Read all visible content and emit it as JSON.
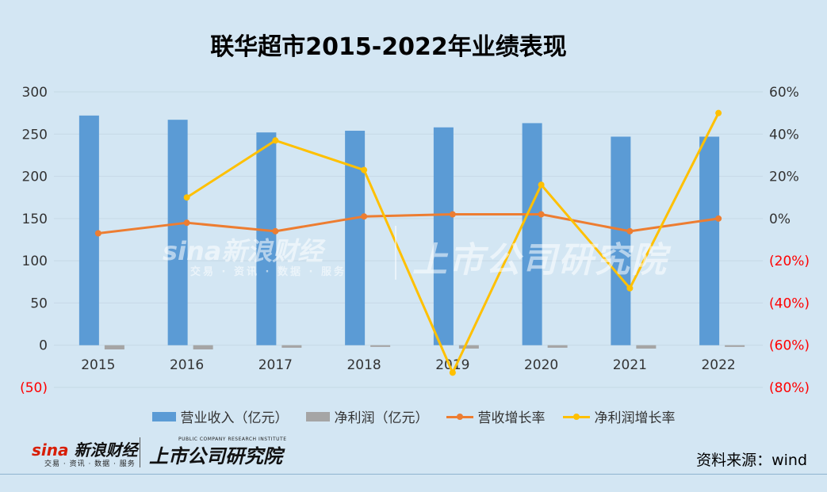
{
  "title": "联华超市2015-2022年业绩表现",
  "chart_data": {
    "type": "bar+line",
    "categories": [
      "2015",
      "2016",
      "2017",
      "2018",
      "2019",
      "2020",
      "2021",
      "2022"
    ],
    "series": [
      {
        "name": "营业收入（亿元）",
        "type": "bar",
        "axis": "left",
        "color": "#5b9bd5",
        "values": [
          272,
          267,
          252,
          254,
          258,
          263,
          247,
          247
        ]
      },
      {
        "name": "净利润（亿元）",
        "type": "bar",
        "axis": "left",
        "color": "#a5a5a5",
        "values": [
          -5,
          -5,
          -3,
          -2,
          -4,
          -3,
          -4,
          -2
        ]
      },
      {
        "name": "营收增长率",
        "type": "line",
        "axis": "right",
        "color": "#ed7d31",
        "values": [
          -7,
          -2,
          -6,
          1,
          2,
          2,
          -6,
          0
        ]
      },
      {
        "name": "净利润增长率",
        "type": "line",
        "axis": "right",
        "color": "#ffc000",
        "values": [
          null,
          10,
          37,
          23,
          -73,
          16,
          -33,
          50
        ]
      }
    ],
    "yaxis_left": {
      "min": -50,
      "max": 300,
      "ticks": [
        300,
        250,
        200,
        150,
        100,
        50,
        0,
        -50
      ],
      "tick_labels": [
        "300",
        "250",
        "200",
        "150",
        "100",
        "50",
        "0",
        "(50)"
      ]
    },
    "yaxis_right": {
      "min": -80,
      "max": 60,
      "ticks": [
        60,
        40,
        20,
        0,
        -20,
        -40,
        -60,
        -80
      ],
      "tick_labels": [
        "60%",
        "40%",
        "20%",
        "0%",
        "(20%)",
        "(40%)",
        "(60%)",
        "(80%)"
      ]
    },
    "negative_label_color": "#ff0000",
    "legend_position": "bottom",
    "grid": true
  },
  "watermark": {
    "sina": "sina新浪财经",
    "sina_sub": "交易 · 资讯 · 数据 · 服务",
    "institute": "上市公司研究院"
  },
  "footer": {
    "sina_logo": "新浪财经",
    "sina_sub": "交易 · 资讯 · 数据 · 服务",
    "institute_logo": "上市公司研究院",
    "institute_sub": "PUBLIC COMPANY RESEARCH INSTITUTE",
    "source": "资料来源：wind"
  }
}
